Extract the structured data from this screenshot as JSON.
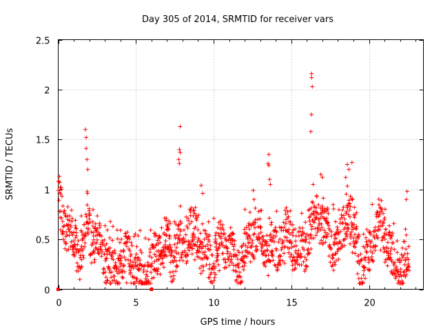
{
  "chart_data": {
    "type": "scatter",
    "title": "Day 305 of 2014, SRMTID for receiver vars",
    "xlabel": "GPS time / hours",
    "ylabel": "SRMTID / TECUs",
    "xlim": [
      0,
      23.5
    ],
    "ylim": [
      0,
      2.5
    ],
    "x_ticks": [
      0,
      5,
      10,
      15,
      20
    ],
    "y_ticks": [
      0,
      0.5,
      1,
      1.5,
      2,
      2.5
    ],
    "x_tick_labels": [
      "0",
      "5",
      "10",
      "15",
      "20"
    ],
    "y_tick_labels": [
      "0",
      "0.5",
      "1",
      "1.5",
      "2",
      "2.5"
    ],
    "grid": true,
    "series": [
      {
        "name": "SRMTID",
        "color": "#ff0000",
        "marker": "plus",
        "profile": [
          [
            0.0,
            0.82
          ],
          [
            0.5,
            0.5
          ],
          [
            1.0,
            0.45
          ],
          [
            1.5,
            0.45
          ],
          [
            1.8,
            0.75
          ],
          [
            2.2,
            0.45
          ],
          [
            2.8,
            0.3
          ],
          [
            3.5,
            0.3
          ],
          [
            4.2,
            0.22
          ],
          [
            5.0,
            0.2
          ],
          [
            6.0,
            0.25
          ],
          [
            7.0,
            0.35
          ],
          [
            7.8,
            0.5
          ],
          [
            8.5,
            0.45
          ],
          [
            9.3,
            0.45
          ],
          [
            10.0,
            0.35
          ],
          [
            11.0,
            0.33
          ],
          [
            12.0,
            0.42
          ],
          [
            13.0,
            0.48
          ],
          [
            13.6,
            0.5
          ],
          [
            14.5,
            0.4
          ],
          [
            15.3,
            0.45
          ],
          [
            16.2,
            0.55
          ],
          [
            17.0,
            0.6
          ],
          [
            18.0,
            0.5
          ],
          [
            18.6,
            0.65
          ],
          [
            19.5,
            0.3
          ],
          [
            20.5,
            0.55
          ],
          [
            21.3,
            0.4
          ],
          [
            22.0,
            0.3
          ],
          [
            22.6,
            0.18
          ]
        ],
        "spikes": [
          {
            "x": 1.75,
            "y": 1.6
          },
          {
            "x": 1.8,
            "y": 1.52
          },
          {
            "x": 1.8,
            "y": 1.41
          },
          {
            "x": 1.85,
            "y": 1.3
          },
          {
            "x": 1.9,
            "y": 1.2
          },
          {
            "x": 7.85,
            "y": 1.63
          },
          {
            "x": 7.8,
            "y": 1.4
          },
          {
            "x": 7.85,
            "y": 1.37
          },
          {
            "x": 7.75,
            "y": 1.3
          },
          {
            "x": 7.8,
            "y": 1.26
          },
          {
            "x": 9.2,
            "y": 1.04
          },
          {
            "x": 9.3,
            "y": 0.96
          },
          {
            "x": 12.55,
            "y": 0.99
          },
          {
            "x": 12.6,
            "y": 0.9
          },
          {
            "x": 13.55,
            "y": 1.35
          },
          {
            "x": 13.5,
            "y": 1.26
          },
          {
            "x": 13.55,
            "y": 1.24
          },
          {
            "x": 13.6,
            "y": 1.1
          },
          {
            "x": 13.65,
            "y": 1.05
          },
          {
            "x": 16.3,
            "y": 2.16
          },
          {
            "x": 16.3,
            "y": 2.12
          },
          {
            "x": 16.35,
            "y": 2.03
          },
          {
            "x": 16.3,
            "y": 1.75
          },
          {
            "x": 16.25,
            "y": 1.58
          },
          {
            "x": 16.4,
            "y": 1.05
          },
          {
            "x": 16.9,
            "y": 1.15
          },
          {
            "x": 17.0,
            "y": 1.12
          },
          {
            "x": 18.6,
            "y": 1.25
          },
          {
            "x": 18.7,
            "y": 1.2
          },
          {
            "x": 18.9,
            "y": 1.27
          },
          {
            "x": 18.5,
            "y": 1.12
          },
          {
            "x": 22.45,
            "y": 0.98
          },
          {
            "x": 22.4,
            "y": 0.9
          }
        ]
      }
    ],
    "extra_markers": [
      {
        "x": 0.0,
        "y": 0.0,
        "shape": "square"
      },
      {
        "x": 6.0,
        "y": 0.0,
        "shape": "square"
      }
    ]
  }
}
